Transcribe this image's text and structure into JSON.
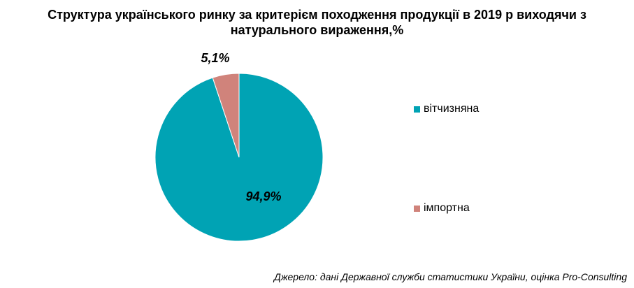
{
  "chart_data": {
    "type": "pie",
    "title": "Структура українського ринку за критерієм походження продукції в 2019 р виходячи з натурального вираження,%",
    "title_lines": [
      "Структура українського ринку за критерієм походження продукції в 2019 р виходячи з",
      "натурального вираження,%"
    ],
    "slices": [
      {
        "label": "вітчизняна",
        "value": 94.9,
        "data_label": "94,9%",
        "color": "#00A3B4"
      },
      {
        "label": "імпортна",
        "value": 5.1,
        "data_label": "5,1%",
        "color": "#D0837B"
      }
    ],
    "legend_position": "right"
  },
  "source": "Джерело: дані Державної служби статистики України, оцінка Pro-Consulting"
}
